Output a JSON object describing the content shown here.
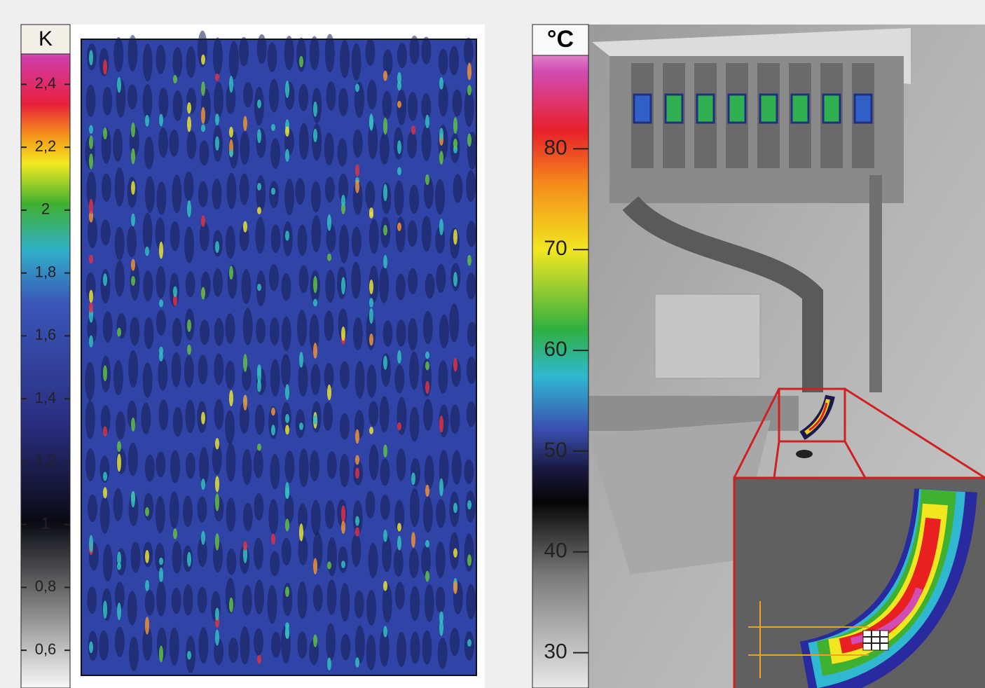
{
  "left_panel": {
    "unit": "K",
    "scale_range": [
      0.48,
      2.49
    ],
    "scale_ticks": [
      {
        "value": 2.4,
        "label": "2,4"
      },
      {
        "value": 2.2,
        "label": "2,2"
      },
      2,
      {
        "value": 1.8,
        "label": "1,8"
      },
      {
        "value": 1.6,
        "label": "1,6"
      },
      {
        "value": 1.4,
        "label": "1,4"
      },
      {
        "value": 1.2,
        "label": "1,2"
      },
      1,
      {
        "value": 0.8,
        "label": "0,8"
      },
      {
        "value": 0.6,
        "label": "0,6"
      }
    ]
  },
  "right_panel": {
    "unit": "°C",
    "scale_range": [
      26.5,
      89.2
    ],
    "scale_ticks": [
      80,
      70,
      60,
      50,
      40,
      30
    ]
  }
}
